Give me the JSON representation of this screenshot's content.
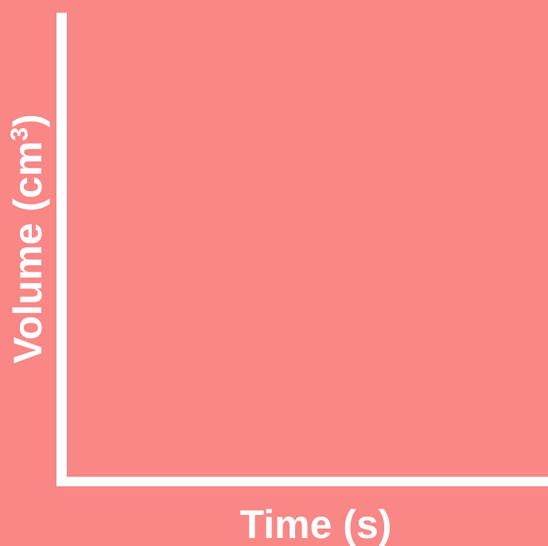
{
  "colors": {
    "background": "#f88786",
    "axis": "#ffffff",
    "text": "#ffffff"
  },
  "chart_data": {
    "type": "line",
    "title": "",
    "xlabel": "Time (s)",
    "ylabel_main": "Volume (cm",
    "ylabel_sup": "3",
    "ylabel_close": ")",
    "series": [],
    "grid": false,
    "legend": "none"
  }
}
